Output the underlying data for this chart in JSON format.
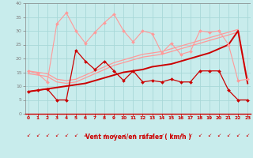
{
  "x": [
    0,
    1,
    2,
    3,
    4,
    5,
    6,
    7,
    8,
    9,
    10,
    11,
    12,
    13,
    14,
    15,
    16,
    17,
    18,
    19,
    20,
    21,
    22,
    23
  ],
  "light_spiky": [
    15.5,
    14.5,
    11.5,
    32.5,
    36.5,
    30.0,
    25.5,
    29.5,
    33.0,
    36.0,
    30.0,
    26.0,
    30.0,
    29.0,
    22.0,
    25.5,
    21.5,
    22.5,
    30.0,
    29.5,
    30.0,
    25.0,
    12.0,
    12.5
  ],
  "dark_spiky": [
    8.0,
    8.5,
    9.0,
    5.0,
    5.0,
    23.0,
    19.0,
    16.0,
    19.0,
    15.5,
    12.0,
    15.5,
    11.5,
    12.0,
    11.5,
    12.5,
    11.5,
    11.5,
    15.5,
    15.5,
    15.5,
    8.5,
    5.0,
    5.0
  ],
  "lin_lp1": [
    15.5,
    15.0,
    14.5,
    12.5,
    12.0,
    12.5,
    14.0,
    15.5,
    17.0,
    18.5,
    19.5,
    20.5,
    21.5,
    22.0,
    22.5,
    23.5,
    24.5,
    25.5,
    26.5,
    27.5,
    28.5,
    29.5,
    30.5,
    12.0
  ],
  "lin_lp2": [
    14.5,
    14.0,
    13.5,
    11.5,
    11.0,
    11.5,
    13.0,
    14.5,
    16.0,
    17.5,
    18.5,
    19.5,
    20.5,
    21.0,
    21.5,
    22.5,
    23.5,
    24.5,
    25.5,
    26.5,
    27.5,
    28.5,
    29.5,
    11.5
  ],
  "lin_dr": [
    8.0,
    8.5,
    9.0,
    9.5,
    10.0,
    10.5,
    11.0,
    12.0,
    13.0,
    14.0,
    15.0,
    15.5,
    16.0,
    17.0,
    17.5,
    18.0,
    19.0,
    20.0,
    21.0,
    22.0,
    23.5,
    25.0,
    30.0,
    11.0
  ],
  "bg_color": "#c8ecec",
  "grid_color": "#a8d8d8",
  "light_pink": "#ff9999",
  "dark_red": "#cc0000",
  "xlabel": "Vent moyen/en rafales ( km/h )",
  "yticks": [
    0,
    5,
    10,
    15,
    20,
    25,
    30,
    35,
    40
  ],
  "ylim_min": 0,
  "ylim_max": 40,
  "xlim_min": -0.3,
  "xlim_max": 23.3
}
